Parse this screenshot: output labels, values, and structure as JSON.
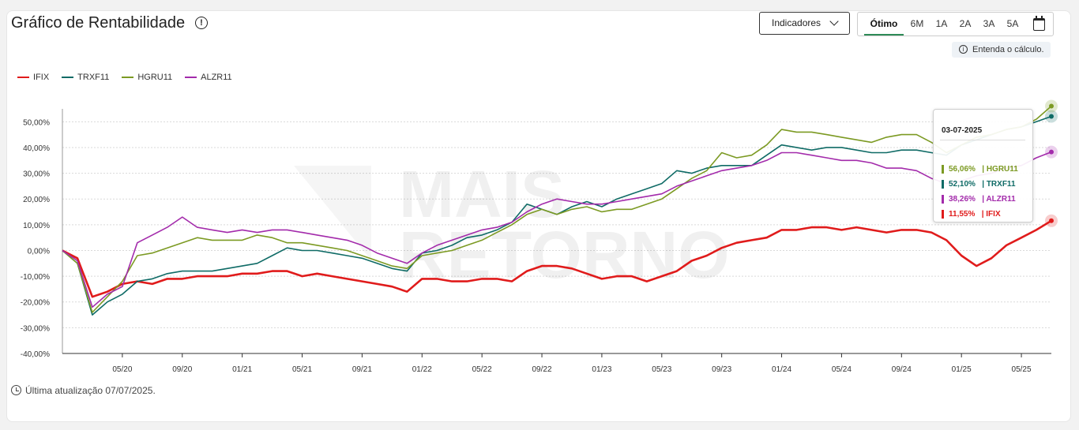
{
  "header": {
    "title": "Gráfico de Rentabilidade"
  },
  "indicators_button": "Indicadores",
  "periods": [
    "Ótimo",
    "6M",
    "1A",
    "2A",
    "3A",
    "5A"
  ],
  "active_period": "Ótimo",
  "hint": "Entenda o cálculo.",
  "watermark": "MAIS RETORNO",
  "tooltip": {
    "date": "03-07-2025",
    "rows": [
      {
        "text": "56,06%   | HGRU11",
        "color": "#7c9a23"
      },
      {
        "text": "52,10%   | TRXF11",
        "color": "#0f6b66"
      },
      {
        "text": "38,26%   | ALZR11",
        "color": "#a32bab"
      },
      {
        "text": "11,55%   | IFIX",
        "color": "#e01b1b"
      }
    ]
  },
  "footer": {
    "update": "Última atualização 07/07/2025."
  },
  "chart_data": {
    "type": "line",
    "title": "Gráfico de Rentabilidade",
    "ylim": [
      -40,
      55
    ],
    "y_ticks": [
      50,
      40,
      30,
      20,
      10,
      0,
      -10,
      -20,
      -30,
      -40
    ],
    "y_tick_labels": [
      "50,00%",
      "40,00%",
      "30,00%",
      "20,00%",
      "10,00%",
      "0,00%",
      "-10,00%",
      "-20,00%",
      "-30,00%",
      "-40,00%"
    ],
    "x_tick_labels": [
      "05/20",
      "09/20",
      "01/21",
      "05/21",
      "09/21",
      "01/22",
      "05/22",
      "09/22",
      "01/23",
      "05/23",
      "09/23",
      "01/24",
      "05/24",
      "09/24",
      "01/25",
      "05/25"
    ],
    "x_start": "2020-01",
    "x_end": "2025-07",
    "x": [
      "2020-01",
      "2020-02",
      "2020-03",
      "2020-04",
      "2020-05",
      "2020-06",
      "2020-07",
      "2020-08",
      "2020-09",
      "2020-10",
      "2020-11",
      "2020-12",
      "2021-01",
      "2021-02",
      "2021-03",
      "2021-04",
      "2021-05",
      "2021-06",
      "2021-07",
      "2021-08",
      "2021-09",
      "2021-10",
      "2021-11",
      "2021-12",
      "2022-01",
      "2022-02",
      "2022-03",
      "2022-04",
      "2022-05",
      "2022-06",
      "2022-07",
      "2022-08",
      "2022-09",
      "2022-10",
      "2022-11",
      "2022-12",
      "2023-01",
      "2023-02",
      "2023-03",
      "2023-04",
      "2023-05",
      "2023-06",
      "2023-07",
      "2023-08",
      "2023-09",
      "2023-10",
      "2023-11",
      "2023-12",
      "2024-01",
      "2024-02",
      "2024-03",
      "2024-04",
      "2024-05",
      "2024-06",
      "2024-07",
      "2024-08",
      "2024-09",
      "2024-10",
      "2024-11",
      "2024-12",
      "2025-01",
      "2025-02",
      "2025-03",
      "2025-04",
      "2025-05",
      "2025-06",
      "2025-07"
    ],
    "grid": true,
    "legend_position": "top-left",
    "series": [
      {
        "name": "IFIX",
        "color": "#e01b1b",
        "values": [
          0,
          -3,
          -18,
          -16,
          -13,
          -12,
          -13,
          -11,
          -11,
          -10,
          -10,
          -10,
          -9,
          -9,
          -8,
          -8,
          -10,
          -9,
          -10,
          -11,
          -12,
          -13,
          -14,
          -16,
          -11,
          -11,
          -12,
          -12,
          -11,
          -11,
          -12,
          -8,
          -6,
          -6,
          -7,
          -9,
          -11,
          -10,
          -10,
          -12,
          -10,
          -8,
          -4,
          -2,
          1,
          3,
          4,
          5,
          8,
          8,
          9,
          9,
          8,
          9,
          8,
          7,
          8,
          8,
          7,
          4,
          -2,
          -6,
          -3,
          2,
          5,
          8,
          11.55
        ]
      },
      {
        "name": "TRXF11",
        "color": "#0f6b66",
        "values": [
          0,
          -5,
          -25,
          -20,
          -17,
          -12,
          -11,
          -9,
          -8,
          -8,
          -8,
          -7,
          -6,
          -5,
          -2,
          1,
          0,
          0,
          -1,
          -2,
          -3,
          -5,
          -7,
          -8,
          -1,
          0,
          2,
          5,
          6,
          8,
          11,
          18,
          16,
          14,
          17,
          19,
          17,
          20,
          22,
          24,
          26,
          31,
          30,
          32,
          33,
          33,
          33,
          37,
          41,
          40,
          39,
          40,
          40,
          39,
          38,
          38,
          39,
          39,
          38,
          37,
          41,
          43,
          45,
          47,
          48,
          50,
          52.1
        ]
      },
      {
        "name": "HGRU11",
        "color": "#7c9a23",
        "values": [
          0,
          -5,
          -24,
          -18,
          -12,
          -2,
          -1,
          1,
          3,
          5,
          4,
          4,
          4,
          6,
          5,
          3,
          3,
          2,
          1,
          0,
          -2,
          -4,
          -6,
          -7,
          -2,
          -1,
          0,
          2,
          4,
          7,
          10,
          14,
          16,
          14,
          16,
          17,
          15,
          16,
          16,
          18,
          20,
          24,
          28,
          31,
          38,
          36,
          37,
          41,
          47,
          46,
          46,
          45,
          44,
          43,
          42,
          44,
          45,
          45,
          42,
          38,
          41,
          44,
          45,
          47,
          48,
          51,
          56.06
        ]
      },
      {
        "name": "ALZR11",
        "color": "#a32bab",
        "values": [
          0,
          -4,
          -22,
          -17,
          -14,
          3,
          6,
          9,
          13,
          9,
          8,
          7,
          8,
          7,
          8,
          8,
          7,
          6,
          5,
          4,
          2,
          -1,
          -3,
          -5,
          -1,
          2,
          4,
          6,
          8,
          9,
          11,
          15,
          18,
          20,
          19,
          18,
          18,
          19,
          20,
          21,
          22,
          25,
          27,
          29,
          31,
          32,
          33,
          35,
          38,
          38,
          37,
          36,
          35,
          35,
          34,
          32,
          32,
          31,
          28,
          26,
          27,
          29,
          30,
          32,
          33,
          36,
          38.26
        ]
      }
    ]
  }
}
